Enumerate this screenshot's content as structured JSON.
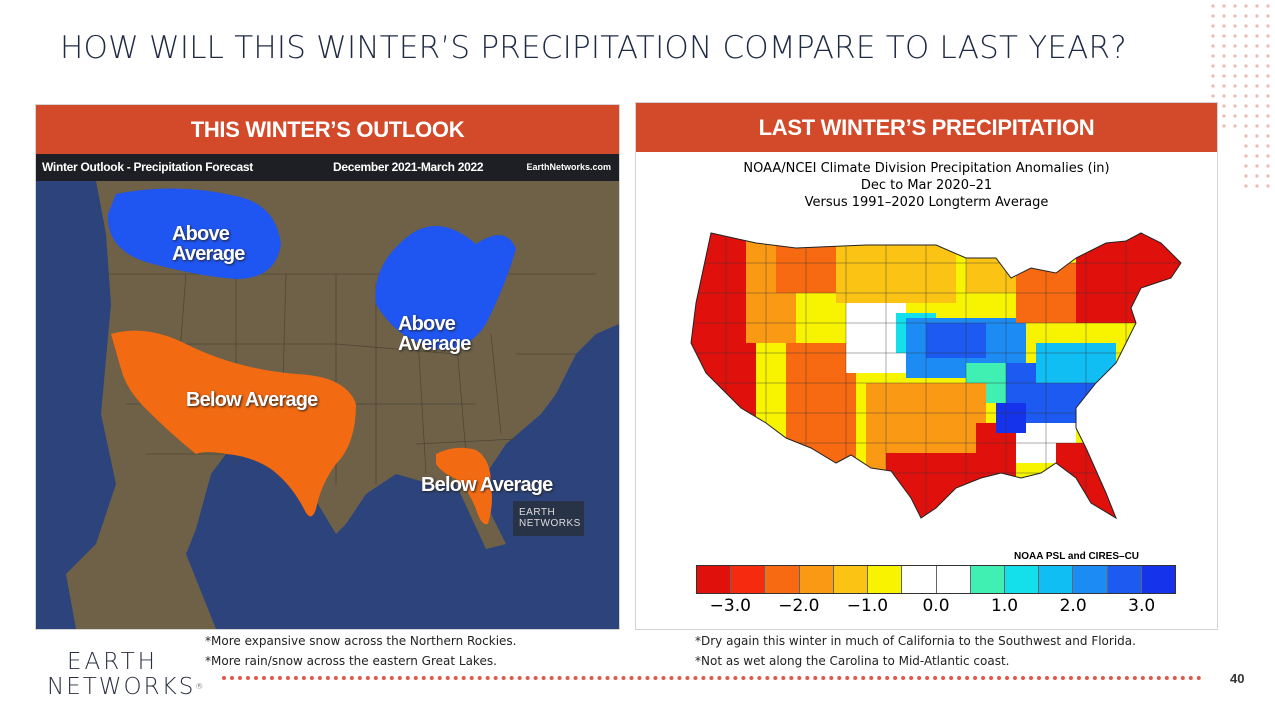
{
  "slide": {
    "title": "HOW WILL THIS WINTER’S PRECIPITATION COMPARE TO LAST YEAR?",
    "page_number": "40",
    "accent_color": "#d24a2a",
    "rule_color": "#e2584a"
  },
  "left_panel": {
    "header": "THIS WINTER’S OUTLOOK",
    "map_title_left": "Winter Outlook - Precipitation Forecast",
    "map_title_center": "December 2021-March 2022",
    "map_title_right": "EarthNetworks.com",
    "labels": {
      "northern_rockies": "Above\nAverage",
      "great_lakes": "Above\nAverage",
      "southwest": "Below Average",
      "florida": "Below Average"
    },
    "watermark_line1": "EARTH",
    "watermark_line2": "NETWORKS",
    "colors": {
      "ocean": "#2c447b",
      "land": "#6e6148",
      "above": "#1f55f0",
      "below": "#f26a12"
    }
  },
  "right_panel": {
    "header": "LAST WINTER’S PRECIPITATION",
    "map_title_line1": "NOAA/NCEI Climate Division Precipitation Anomalies (in)",
    "map_title_line2": "Dec to Mar 2020–21",
    "map_title_line3": "Versus 1991–2020 Longterm Average",
    "credit": "NOAA PSL and CIRES–CU",
    "colorbar_colors": [
      "#e0100c",
      "#f42b0f",
      "#f86a12",
      "#fa9a14",
      "#fbc414",
      "#f8f400",
      "#ffffff",
      "#ffffff",
      "#3ff0b2",
      "#14e0ec",
      "#10bef4",
      "#1c8cf4",
      "#1c5af2",
      "#1433ea"
    ],
    "colorbar_ticks": [
      "−3.0",
      "−2.0",
      "−1.0",
      "0.0",
      "1.0",
      "2.0",
      "3.0"
    ]
  },
  "notes": {
    "left_line1": "*More expansive snow across the Northern Rockies.",
    "left_line2": "*More rain/snow across the eastern Great Lakes.",
    "right_line1": "*Dry again this winter in much of California to the Southwest and Florida.",
    "right_line2": "*Not as wet along the Carolina to Mid-Atlantic coast."
  },
  "logo": {
    "line1": "EARTH",
    "line2": "NETWORKS"
  }
}
